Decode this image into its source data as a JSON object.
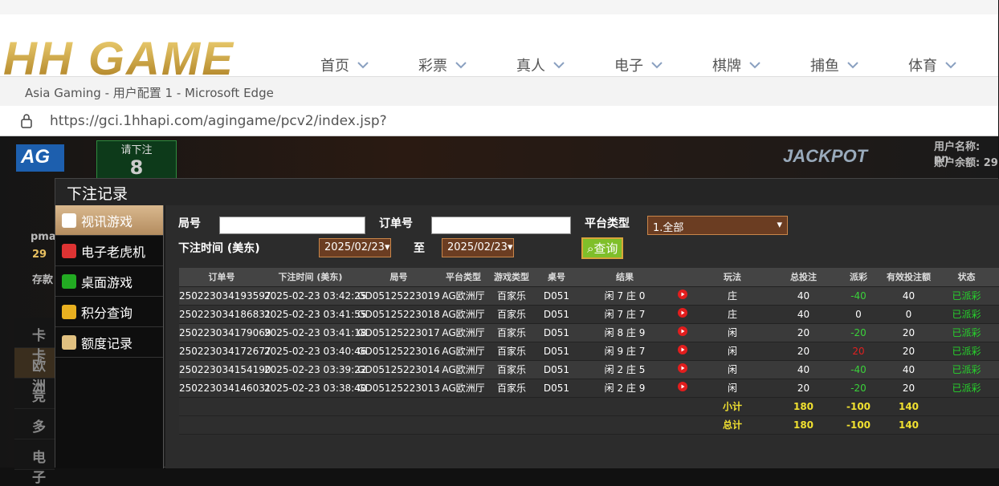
{
  "header": {
    "logo": "HH GAME",
    "nav": [
      "首页",
      "彩票",
      "真人",
      "电子",
      "棋牌",
      "捕鱼",
      "体育"
    ]
  },
  "browser": {
    "title": "Asia Gaming - 用户配置 1 - Microsoft Edge",
    "url": "https://gci.1hhapi.com/agingame/pcv2/index.jsp?"
  },
  "game": {
    "brand": "AG",
    "bet_prompt": "请下注",
    "countdown": "8",
    "jackpot": "JACKPOT",
    "user_name": "用户名称: pn",
    "balance": "账户余额: 29",
    "player": "pma",
    "player_balance": "29",
    "deposit": "存款",
    "menu": [
      "卡卡",
      "欧洲",
      "竞",
      "多",
      "电子"
    ]
  },
  "dialog": {
    "title": "下注记录",
    "sidebar": [
      "视讯游戏",
      "电子老虎机",
      "桌面游戏",
      "积分查询",
      "额度记录"
    ],
    "filters": {
      "round_label": "局号",
      "order_label": "订单号",
      "platform_label": "平台类型",
      "platform_value": "1.全部",
      "time_label": "下注时间 (美东)",
      "date_from": "2025/02/23",
      "to": "至",
      "date_to": "2025/02/23",
      "search": "查询"
    },
    "table": {
      "columns": [
        "订单号",
        "下注时间 (美东)",
        "局号",
        "平台类型",
        "游戏类型",
        "桌号",
        "结果",
        "玩法",
        "总投注",
        "派彩",
        "有效投注额",
        "状态"
      ],
      "rows": [
        [
          "250223034193597",
          "2025-02-23 03:42:25",
          "GD05125223019",
          "AG欧洲厅",
          "百家乐",
          "D051",
          "闲 7 庄 0",
          "庄",
          40,
          -40,
          40,
          "已派彩"
        ],
        [
          "250223034186831",
          "2025-02-23 03:41:55",
          "GD05125223018",
          "AG欧洲厅",
          "百家乐",
          "D051",
          "闲 7 庄 7",
          "庄",
          40,
          0,
          0,
          "已派彩"
        ],
        [
          "250223034179069",
          "2025-02-23 03:41:18",
          "GD05125223017",
          "AG欧洲厅",
          "百家乐",
          "D051",
          "闲 8 庄 9",
          "闲",
          20,
          -20,
          20,
          "已派彩"
        ],
        [
          "250223034172677",
          "2025-02-23 03:40:46",
          "GD05125223016",
          "AG欧洲厅",
          "百家乐",
          "D051",
          "闲 9 庄 7",
          "闲",
          20,
          20,
          20,
          "已派彩"
        ],
        [
          "250223034154190",
          "2025-02-23 03:39:22",
          "GD05125223014",
          "AG欧洲厅",
          "百家乐",
          "D051",
          "闲 2 庄 5",
          "闲",
          40,
          -40,
          40,
          "已派彩"
        ],
        [
          "250223034146031",
          "2025-02-23 03:38:40",
          "GD05125223013",
          "AG欧洲厅",
          "百家乐",
          "D051",
          "闲 2 庄 9",
          "闲",
          20,
          -20,
          20,
          "已派彩"
        ]
      ],
      "subtotal": {
        "label": "小计",
        "values": [
          180,
          -100,
          140
        ]
      },
      "total": {
        "label": "总计",
        "values": [
          180,
          -100,
          140
        ]
      }
    }
  }
}
